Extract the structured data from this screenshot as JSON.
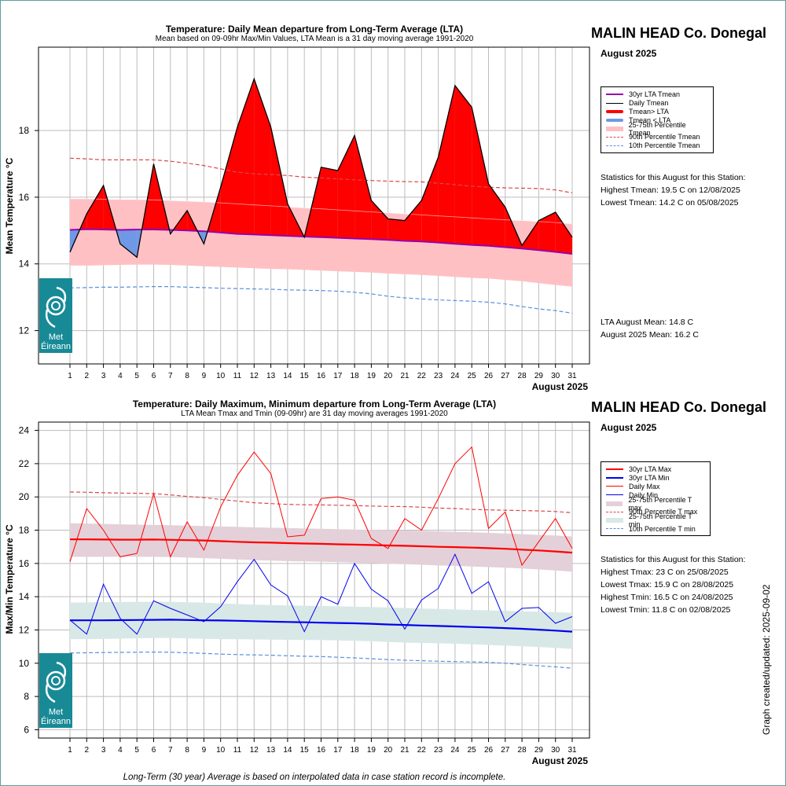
{
  "station": "MALIN HEAD Co. Donegal",
  "month_label": "August 2025",
  "x_axis_label": "August 2025",
  "footer_note": "Long-Term (30 year) Average is based on interpolated data in case station record is incomplete.",
  "updated_text": "Graph created/updated:  2025-09-02",
  "logo": {
    "text_line1": "Met",
    "text_line2": "Éireann",
    "icon": "met-eireann-swirl-icon"
  },
  "colors": {
    "red": "#ff0000",
    "blue": "#0000ee",
    "lta_mean": "#9900aa",
    "pink_band": "#ffc0c4",
    "max_band": "#e4d0d8",
    "min_band": "#d8e8e6",
    "p90": "#d94a4a",
    "p10": "#5b8fe0",
    "below_fill": "#6f98e6",
    "logo_bg": "#178a96"
  },
  "mean_panel": {
    "title": "Temperature: Daily Mean departure from Long-Term Average (LTA)",
    "subtitle": "Mean based on 09-09hr Max/Min Values, LTA Mean is a 31 day moving average 1991-2020",
    "ylabel": "Mean Temperature °C",
    "legend": [
      "30yr LTA Tmean",
      "Daily Tmean",
      "Tmean> LTA",
      "Tmean < LTA",
      "25-75th Percentile Tmean",
      "90th Percentile Tmean",
      "10th Percentile Tmean"
    ],
    "stats_heading": "Statistics for this August for this Station:",
    "stats": [
      "Highest Tmean: 19.5 C on 12/08/2025",
      "Lowest Tmean: 14.2 C on 05/08/2025"
    ],
    "summary": [
      "LTA August Mean: 14.8 C",
      "August 2025 Mean: 16.2 C"
    ]
  },
  "maxmin_panel": {
    "title": "Temperature: Daily Maximum, Minimum departure from Long-Term Average (LTA)",
    "subtitle": "LTA Mean Tmax and Tmin (09-09hr) are 31 day moving averages 1991-2020",
    "ylabel": "Max/Min Temperature °C",
    "legend": [
      "30yr LTA Max",
      "30yr LTA Min",
      "Daily Max",
      "Daily Min",
      "25-75th Percentile T max",
      "90th Percentile T max",
      "25-75th Percentile T min",
      "10th Percentile T min"
    ],
    "stats_heading": "Statistics for this August for this Station:",
    "stats": [
      "Highest Tmax: 23 C on 25/08/2025",
      "Lowest Tmax: 15.9 C on 28/08/2025",
      "Highest Tmin: 16.5 C on 24/08/2025",
      "Lowest Tmin: 11.8 C on 02/08/2025"
    ]
  },
  "chart_data": [
    {
      "type": "area",
      "title": "Temperature: Daily Mean departure from Long-Term Average (LTA)",
      "xlabel": "August 2025",
      "ylabel": "Mean Temperature °C",
      "x": [
        1,
        2,
        3,
        4,
        5,
        6,
        7,
        8,
        9,
        10,
        11,
        12,
        13,
        14,
        15,
        16,
        17,
        18,
        19,
        20,
        21,
        22,
        23,
        24,
        25,
        26,
        27,
        28,
        29,
        30,
        31
      ],
      "ylim": [
        11,
        20.5
      ],
      "yticks": [
        12,
        14,
        16,
        18
      ],
      "grid": true,
      "legend_position": "right",
      "series": [
        {
          "name": "Daily Tmean",
          "values": [
            14.35,
            15.5,
            16.35,
            14.6,
            14.2,
            17.0,
            14.9,
            15.6,
            14.6,
            16.3,
            18.1,
            19.55,
            18.1,
            15.8,
            14.8,
            16.9,
            16.8,
            17.85,
            15.9,
            15.35,
            15.3,
            15.9,
            17.2,
            19.35,
            18.7,
            16.4,
            15.7,
            14.55,
            15.3,
            15.55,
            14.8
          ]
        },
        {
          "name": "30yr LTA Tmean",
          "values": [
            15.02,
            15.04,
            15.03,
            15.02,
            15.03,
            15.03,
            15.02,
            15.0,
            14.98,
            14.94,
            14.9,
            14.88,
            14.86,
            14.84,
            14.82,
            14.8,
            14.78,
            14.76,
            14.74,
            14.72,
            14.69,
            14.67,
            14.64,
            14.6,
            14.57,
            14.54,
            14.5,
            14.46,
            14.41,
            14.36,
            14.3
          ]
        },
        {
          "name": "25-75th Percentile Tmean (upper)",
          "values": [
            15.95,
            15.95,
            15.94,
            15.93,
            15.93,
            15.92,
            15.9,
            15.88,
            15.86,
            15.83,
            15.8,
            15.77,
            15.74,
            15.71,
            15.68,
            15.65,
            15.62,
            15.59,
            15.56,
            15.53,
            15.5,
            15.47,
            15.44,
            15.41,
            15.38,
            15.35,
            15.32,
            15.3,
            15.27,
            15.24,
            15.2
          ]
        },
        {
          "name": "25-75th Percentile Tmean (lower)",
          "values": [
            13.95,
            13.95,
            13.96,
            13.97,
            13.98,
            13.98,
            13.97,
            13.95,
            13.93,
            13.91,
            13.89,
            13.87,
            13.85,
            13.84,
            13.82,
            13.8,
            13.78,
            13.76,
            13.74,
            13.71,
            13.69,
            13.67,
            13.64,
            13.61,
            13.58,
            13.56,
            13.52,
            13.48,
            13.42,
            13.37,
            13.32
          ]
        },
        {
          "name": "90th Percentile Tmean",
          "values": [
            17.17,
            17.15,
            17.12,
            17.12,
            17.12,
            17.12,
            17.08,
            17.02,
            16.95,
            16.85,
            16.75,
            16.7,
            16.68,
            16.65,
            16.6,
            16.58,
            16.55,
            16.52,
            16.5,
            16.48,
            16.47,
            16.46,
            16.42,
            16.38,
            16.33,
            16.3,
            16.28,
            16.27,
            16.26,
            16.22,
            16.13
          ]
        },
        {
          "name": "10th Percentile Tmean",
          "values": [
            13.28,
            13.29,
            13.3,
            13.3,
            13.31,
            13.32,
            13.32,
            13.3,
            13.29,
            13.27,
            13.26,
            13.25,
            13.24,
            13.22,
            13.21,
            13.2,
            13.18,
            13.15,
            13.1,
            13.03,
            12.98,
            12.95,
            12.92,
            12.9,
            12.88,
            12.85,
            12.8,
            12.72,
            12.65,
            12.6,
            12.52
          ]
        }
      ]
    },
    {
      "type": "line",
      "title": "Temperature: Daily Maximum, Minimum departure from Long-Term Average (LTA)",
      "xlabel": "August 2025",
      "ylabel": "Max/Min Temperature °C",
      "x": [
        1,
        2,
        3,
        4,
        5,
        6,
        7,
        8,
        9,
        10,
        11,
        12,
        13,
        14,
        15,
        16,
        17,
        18,
        19,
        20,
        21,
        22,
        23,
        24,
        25,
        26,
        27,
        28,
        29,
        30,
        31
      ],
      "ylim": [
        5.5,
        24.5
      ],
      "yticks": [
        6,
        8,
        10,
        12,
        14,
        16,
        18,
        20,
        22,
        24
      ],
      "grid": true,
      "legend_position": "right",
      "series": [
        {
          "name": "Daily Max",
          "values": [
            16.1,
            19.3,
            18.0,
            16.4,
            16.6,
            20.2,
            16.4,
            18.5,
            16.8,
            19.4,
            21.3,
            22.7,
            21.4,
            17.6,
            17.7,
            19.9,
            20.0,
            19.8,
            17.5,
            16.9,
            18.7,
            18.0,
            19.9,
            22.0,
            23.0,
            18.1,
            19.1,
            15.9,
            17.3,
            18.7,
            16.9
          ]
        },
        {
          "name": "Daily Min",
          "values": [
            12.6,
            11.75,
            14.75,
            12.7,
            11.75,
            13.75,
            13.3,
            12.9,
            12.5,
            13.4,
            14.9,
            16.25,
            14.7,
            14.05,
            11.9,
            14.0,
            13.55,
            16.0,
            14.45,
            13.75,
            12.05,
            13.8,
            14.5,
            16.55,
            14.2,
            14.9,
            12.5,
            13.3,
            13.35,
            12.4,
            12.8
          ]
        },
        {
          "name": "30yr LTA Max",
          "values": [
            17.45,
            17.45,
            17.44,
            17.43,
            17.43,
            17.44,
            17.42,
            17.4,
            17.38,
            17.34,
            17.3,
            17.27,
            17.25,
            17.22,
            17.2,
            17.18,
            17.15,
            17.13,
            17.11,
            17.08,
            17.06,
            17.03,
            17.0,
            16.98,
            16.95,
            16.92,
            16.88,
            16.83,
            16.78,
            16.72,
            16.65
          ]
        },
        {
          "name": "30yr LTA Min",
          "values": [
            12.58,
            12.58,
            12.58,
            12.59,
            12.6,
            12.61,
            12.62,
            12.6,
            12.58,
            12.57,
            12.55,
            12.53,
            12.5,
            12.48,
            12.46,
            12.44,
            12.42,
            12.4,
            12.37,
            12.33,
            12.3,
            12.27,
            12.24,
            12.21,
            12.18,
            12.15,
            12.11,
            12.07,
            12.02,
            11.96,
            11.9
          ]
        },
        {
          "name": "25-75th Percentile T max (upper)",
          "values": [
            18.42,
            18.4,
            18.38,
            18.35,
            18.33,
            18.32,
            18.3,
            18.27,
            18.25,
            18.22,
            18.2,
            18.17,
            18.15,
            18.13,
            18.1,
            18.08,
            18.06,
            18.04,
            18.02,
            18.0,
            17.98,
            17.96,
            17.93,
            17.9,
            17.87,
            17.84,
            17.8,
            17.76,
            17.72,
            17.68,
            17.62
          ]
        },
        {
          "name": "25-75th Percentile T max (lower)",
          "values": [
            16.4,
            16.4,
            16.4,
            16.4,
            16.4,
            16.4,
            16.38,
            16.35,
            16.32,
            16.28,
            16.24,
            16.2,
            16.17,
            16.14,
            16.12,
            16.1,
            16.08,
            16.05,
            16.02,
            15.98,
            15.95,
            15.92,
            15.88,
            15.85,
            15.82,
            15.78,
            15.74,
            15.7,
            15.64,
            15.58,
            15.5
          ]
        },
        {
          "name": "90th Percentile T max",
          "values": [
            20.3,
            20.28,
            20.25,
            20.23,
            20.22,
            20.2,
            20.12,
            20.03,
            19.96,
            19.85,
            19.75,
            19.65,
            19.6,
            19.55,
            19.53,
            19.52,
            19.5,
            19.48,
            19.45,
            19.43,
            19.42,
            19.38,
            19.33,
            19.3,
            19.25,
            19.22,
            19.2,
            19.18,
            19.16,
            19.12,
            19.05
          ]
        },
        {
          "name": "25-75th Percentile T min (upper)",
          "values": [
            13.65,
            13.66,
            13.67,
            13.68,
            13.69,
            13.7,
            13.69,
            13.67,
            13.64,
            13.6,
            13.56,
            13.52,
            13.5,
            13.48,
            13.46,
            13.44,
            13.42,
            13.4,
            13.38,
            13.35,
            13.32,
            13.29,
            13.26,
            13.23,
            13.2,
            13.18,
            13.15,
            13.12,
            13.1,
            13.07,
            13.03
          ]
        },
        {
          "name": "25-75th Percentile T min (lower)",
          "values": [
            11.45,
            11.45,
            11.46,
            11.48,
            11.5,
            11.52,
            11.52,
            11.5,
            11.47,
            11.45,
            11.44,
            11.43,
            11.42,
            11.41,
            11.4,
            11.39,
            11.37,
            11.35,
            11.32,
            11.28,
            11.24,
            11.22,
            11.2,
            11.17,
            11.14,
            11.1,
            11.06,
            11.02,
            10.98,
            10.92,
            10.86
          ]
        },
        {
          "name": "10th Percentile T min",
          "values": [
            10.62,
            10.63,
            10.64,
            10.65,
            10.66,
            10.67,
            10.66,
            10.63,
            10.59,
            10.55,
            10.52,
            10.5,
            10.48,
            10.45,
            10.42,
            10.4,
            10.36,
            10.32,
            10.27,
            10.22,
            10.18,
            10.15,
            10.12,
            10.1,
            10.08,
            10.05,
            10.0,
            9.92,
            9.85,
            9.78,
            9.7
          ]
        }
      ]
    }
  ]
}
